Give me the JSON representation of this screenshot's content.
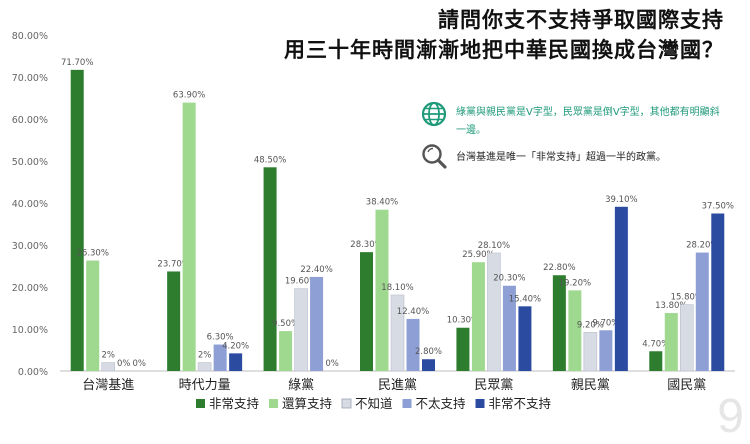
{
  "title": {
    "line1": "請問你支不支持爭取國際支持",
    "line2": "用三十年時間漸漸地把中華民國換成台灣國？"
  },
  "notes": [
    {
      "icon": "globe-icon",
      "text": "綠黨與親民黨是V字型，民眾黨是倒V字型，其他都有明顯斜一邊。"
    },
    {
      "icon": "search-icon",
      "text": "台灣基進是唯一「非常支持」超過一半的政黨。"
    }
  ],
  "page_number": "9",
  "colors": {
    "very_support": "#2e7d2e",
    "support": "#9fd88f",
    "unknown": "#d7dbe3",
    "not_much": "#8e9fd6",
    "very_not": "#2b4ba0",
    "note_accent": "#1f9a7a"
  },
  "chart_data": {
    "type": "bar",
    "categories": [
      "台灣基進",
      "時代力量",
      "綠黨",
      "民進黨",
      "民眾黨",
      "親民黨",
      "國民黨"
    ],
    "series": [
      {
        "name": "非常支持",
        "values": [
          71.7,
          23.7,
          48.5,
          28.3,
          10.3,
          22.8,
          4.7
        ],
        "labels": [
          "71.70%",
          "23.70%",
          "48.50%",
          "28.30%",
          "10.30%",
          "22.80%",
          "4.70%"
        ]
      },
      {
        "name": "還算支持",
        "values": [
          26.3,
          63.9,
          9.5,
          38.4,
          25.9,
          19.2,
          13.8
        ],
        "labels": [
          "26.30%",
          "63.90%",
          "9.50%",
          "38.40%",
          "25.90%",
          "19.20%",
          "13.80%"
        ]
      },
      {
        "name": "不知道",
        "values": [
          2,
          2,
          19.6,
          18.1,
          28.1,
          9.2,
          15.8
        ],
        "labels": [
          "2%",
          "2%",
          "19.60%",
          "18.10%",
          "28.10%",
          "9.20%",
          "15.80%"
        ]
      },
      {
        "name": "不太支持",
        "values": [
          0,
          6.3,
          22.4,
          12.4,
          20.3,
          9.7,
          28.2
        ],
        "labels": [
          "0%",
          "6.30%",
          "22.40%",
          "12.40%",
          "20.30%",
          "9.70%",
          "28.20%"
        ]
      },
      {
        "name": "非常不支持",
        "values": [
          0,
          4.2,
          0,
          2.8,
          15.4,
          39.1,
          37.5
        ],
        "labels": [
          "0%",
          "4.20%",
          "0%",
          "2.80%",
          "15.40%",
          "39.10%",
          "37.50%"
        ]
      }
    ],
    "y_ticks": [
      "0.00%",
      "10.00%",
      "20.00%",
      "30.00%",
      "40.00%",
      "50.00%",
      "60.00%",
      "70.00%",
      "80.00%"
    ],
    "ylim": [
      0,
      80
    ],
    "grid": false,
    "legend_position": "bottom"
  }
}
